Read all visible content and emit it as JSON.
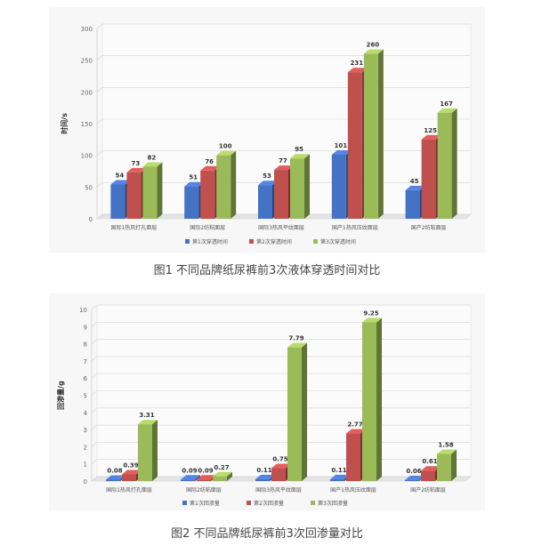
{
  "chart_data": [
    {
      "type": "bar",
      "title": "",
      "ylabel": "时间/s",
      "xlabel": "",
      "ylim": [
        0,
        300
      ],
      "yticks": [
        0,
        50,
        100,
        150,
        200,
        250,
        300
      ],
      "categories": [
        "国际1热风打孔面层",
        "国际2纺粘面层",
        "国际3热风平纹面层",
        "国产1热风压纹面层",
        "国产2纺粘面层"
      ],
      "series": [
        {
          "name": "第1次穿透时间",
          "color": "#4472c4",
          "values": [
            54,
            51,
            53,
            101,
            45
          ],
          "labels": [
            "54",
            "51",
            "53",
            "101",
            "45"
          ]
        },
        {
          "name": "第2次穿透时间",
          "color": "#c0504d",
          "values": [
            73,
            76,
            77,
            231,
            125
          ],
          "labels": [
            "73",
            "76",
            "77",
            "231",
            "125"
          ]
        },
        {
          "name": "第3次穿透时间",
          "color": "#9bbb59",
          "values": [
            82,
            100,
            95,
            260,
            167
          ],
          "labels": [
            "82",
            "100",
            "95",
            "260",
            "167"
          ]
        }
      ],
      "legend": "bottom",
      "caption": "图1  不同品牌纸尿裤前3次液体穿透时间对比"
    },
    {
      "type": "bar",
      "title": "",
      "ylabel": "回渗量/g",
      "xlabel": "",
      "ylim": [
        0,
        10
      ],
      "yticks": [
        0,
        1,
        2,
        3,
        4,
        5,
        6,
        7,
        8,
        9,
        10
      ],
      "categories": [
        "国际1热风打孔面层",
        "国际2纺粘面层",
        "国际3热风平纹面层",
        "国产1热风压纹面层",
        "国产2纺粘面层"
      ],
      "series": [
        {
          "name": "第1次回渗量",
          "color": "#4472c4",
          "values": [
            0.08,
            0.09,
            0.11,
            0.11,
            0.06
          ],
          "labels": [
            "0.08",
            "0.09",
            "0.11",
            "0.11",
            "0.06"
          ]
        },
        {
          "name": "第2次回渗量",
          "color": "#c0504d",
          "values": [
            0.39,
            0.09,
            0.75,
            2.77,
            0.61
          ],
          "labels": [
            "0.39",
            "0.09",
            "0.75",
            "2.77",
            "0.61"
          ]
        },
        {
          "name": "第3次回渗量",
          "color": "#9bbb59",
          "values": [
            3.31,
            0.27,
            7.79,
            9.25,
            1.58
          ],
          "labels": [
            "3.31",
            "0.27",
            "7.79",
            "9.25",
            "1.58"
          ]
        }
      ],
      "legend": "bottom",
      "caption": "图2  不同品牌纸尿裤前3次回渗量对比"
    }
  ]
}
